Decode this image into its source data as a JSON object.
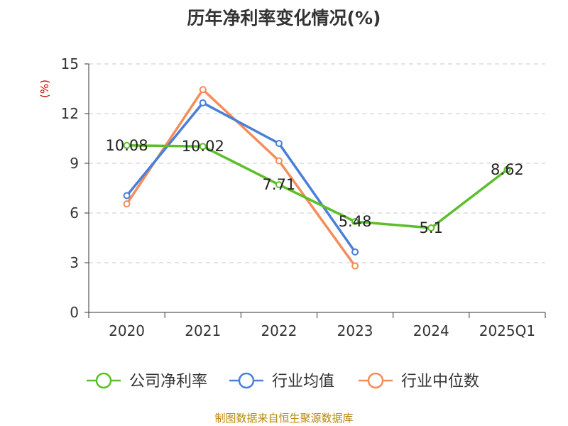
{
  "chart_data": {
    "type": "line",
    "title": "历年净利率变化情况(%)",
    "ylabel": "(%)",
    "xlabel": "",
    "categories": [
      "2020",
      "2021",
      "2022",
      "2023",
      "2024",
      "2025Q1"
    ],
    "ylim": [
      0,
      15
    ],
    "yticks": [
      0,
      3,
      6,
      9,
      12,
      15
    ],
    "grid": true,
    "legend_position": "bottom",
    "series": [
      {
        "name": "公司净利率",
        "color": "#5cbf2a",
        "values": [
          10.08,
          10.02,
          7.71,
          5.48,
          5.1,
          8.62
        ],
        "labels": [
          "10.08",
          "10.02",
          "7.71",
          "5.48",
          "5.1",
          "8.62"
        ]
      },
      {
        "name": "行业均值",
        "color": "#4a7fd9",
        "values": [
          7.05,
          12.65,
          10.2,
          3.65,
          null,
          null
        ]
      },
      {
        "name": "行业中位数",
        "color": "#f58d5a",
        "values": [
          6.55,
          13.45,
          9.15,
          2.8,
          null,
          null
        ]
      }
    ],
    "source": "制图数据来自恒生聚源数据库"
  }
}
